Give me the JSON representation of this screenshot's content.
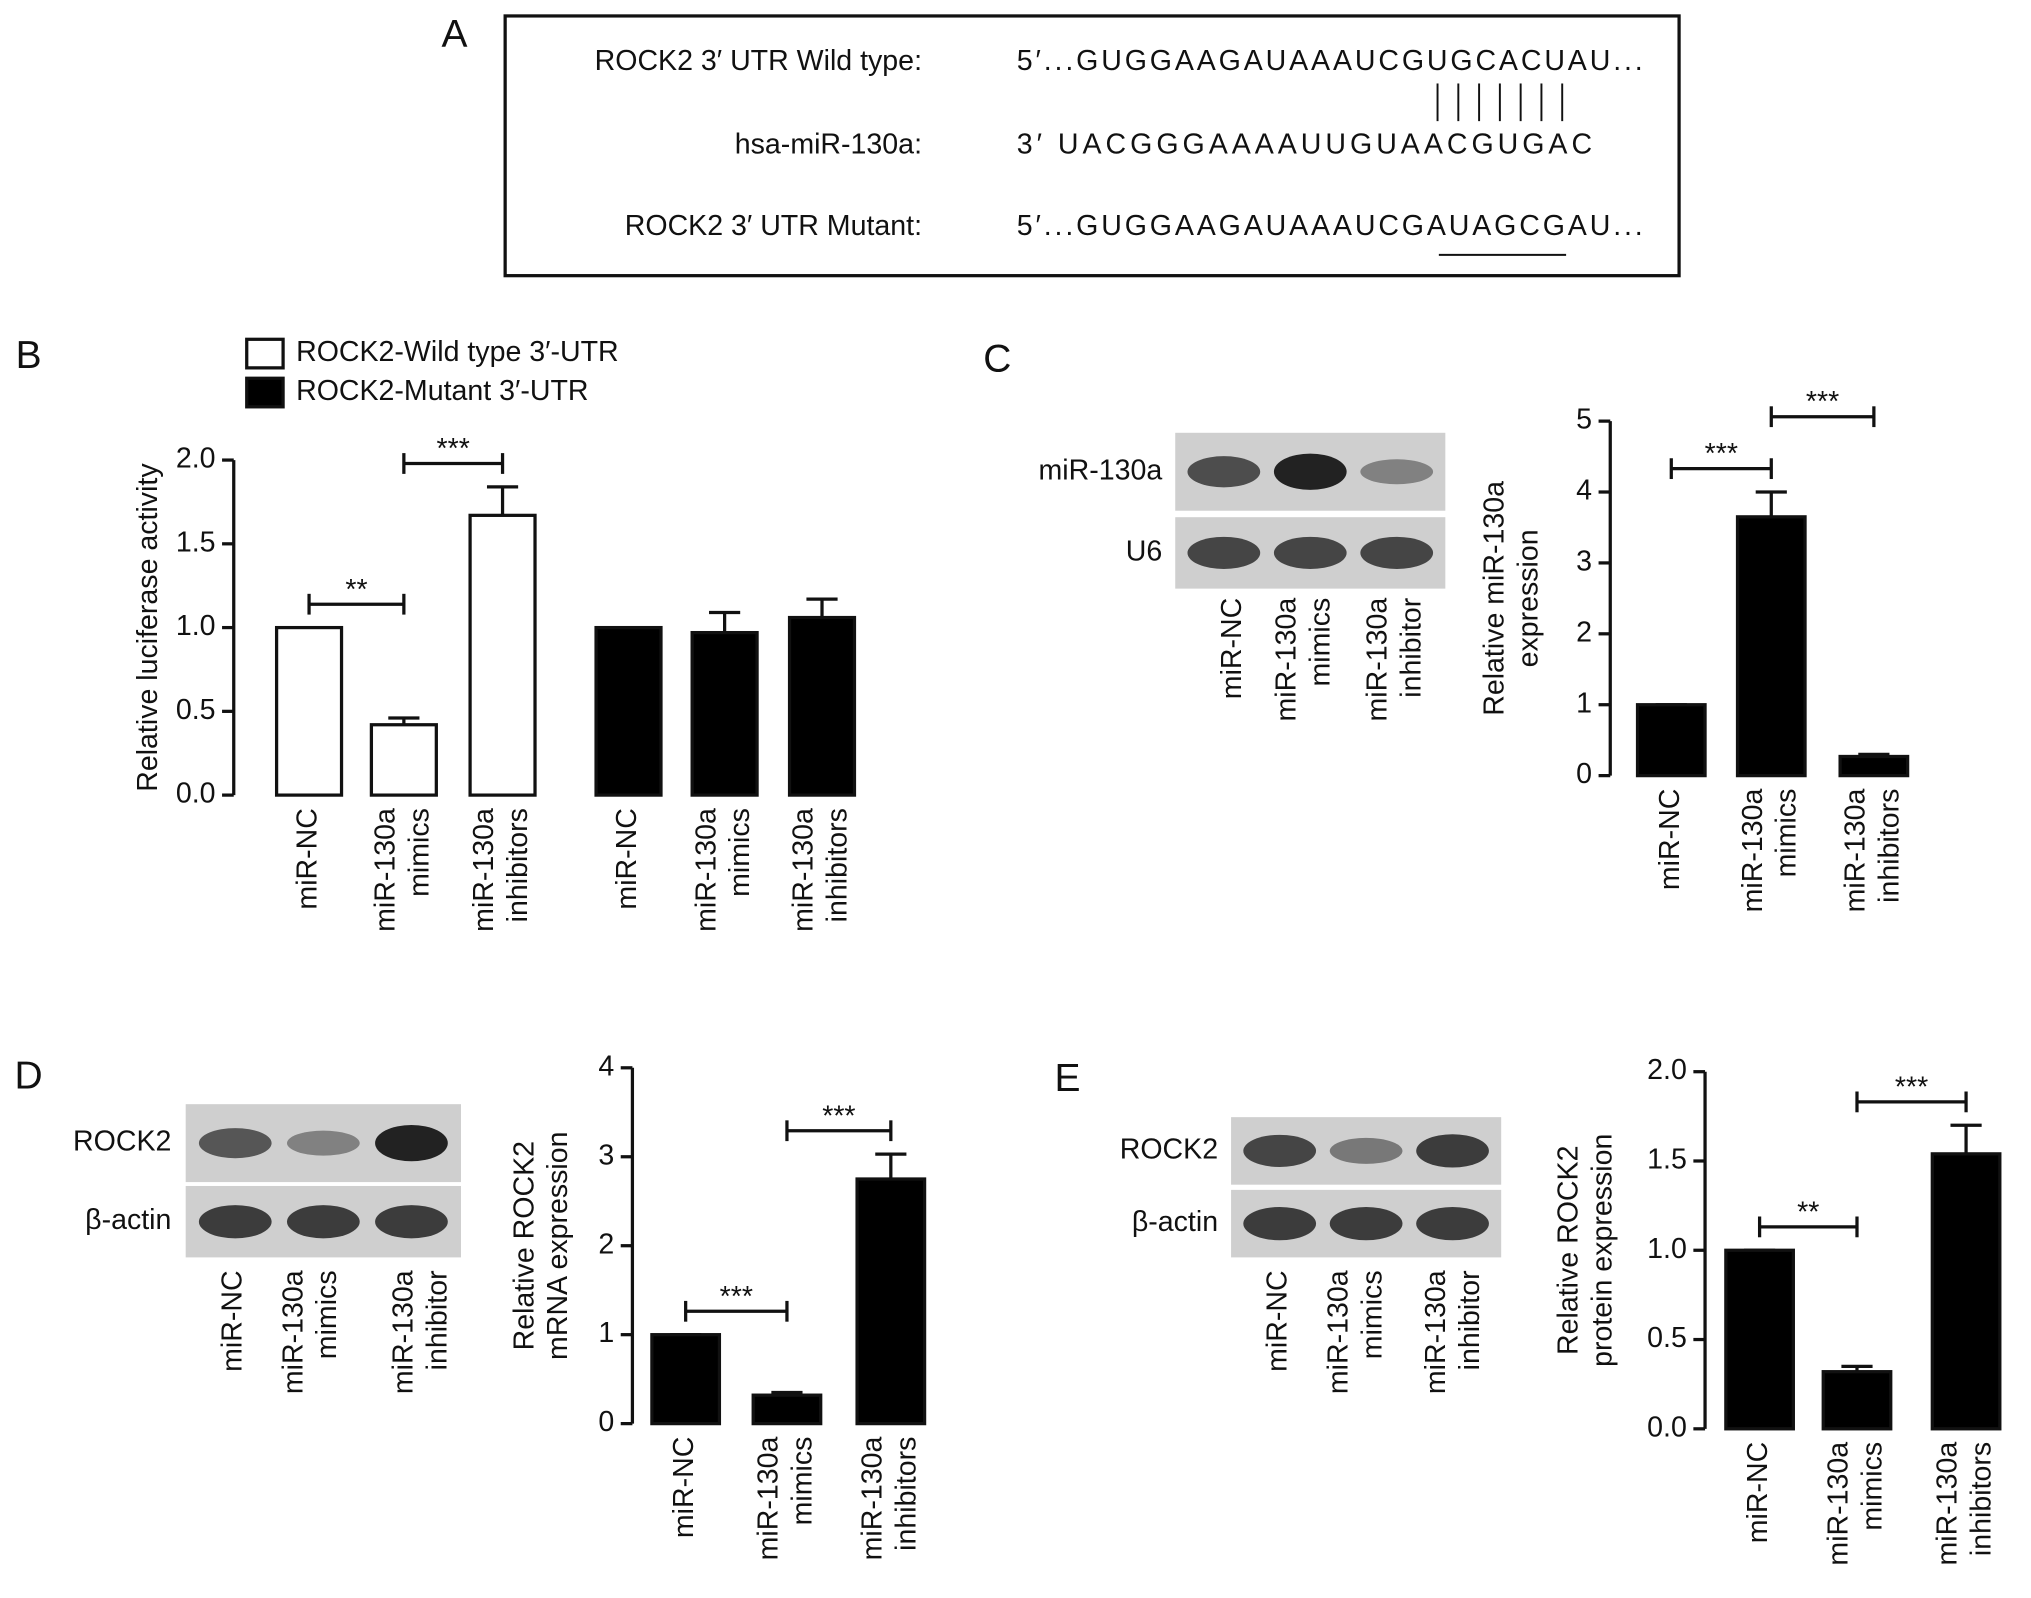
{
  "panel_labels": [
    "A",
    "B",
    "C",
    "D",
    "E"
  ],
  "sequence": {
    "rows": [
      {
        "label": "ROCK2 3′ UTR Wild type:",
        "seq": "5′...GUGGAAGAUAAAUCGUGCACUAU..."
      },
      {
        "label": "hsa-miR-130a:",
        "seq": "3′   UACGGGAAAAUUGUAACGUGAC"
      },
      {
        "label": "ROCK2 3′ UTR Mutant:",
        "seq": "5′...GUGGAAGAUAAAUCGAUAGCGAU..."
      }
    ]
  },
  "blots": [
    {
      "bands": [
        "miR-130a",
        "U6"
      ],
      "lanes": [
        [
          "miR-NC"
        ],
        [
          "miR-130a",
          "mimics"
        ],
        [
          "miR-130a",
          "inhibitor"
        ]
      ]
    },
    {
      "bands": [
        "ROCK2",
        "β-actin"
      ],
      "lanes": [
        [
          "miR-NC"
        ],
        [
          "miR-130a",
          "mimics"
        ],
        [
          "miR-130a",
          "inhibitor"
        ]
      ]
    },
    {
      "bands": [
        "ROCK2",
        "β-actin"
      ],
      "lanes": [
        [
          "miR-NC"
        ],
        [
          "miR-130a",
          "mimics"
        ],
        [
          "miR-130a",
          "inhibitor"
        ]
      ]
    }
  ],
  "chart_data": [
    {
      "type": "bar",
      "y_label": [
        "Relative luciferase activity"
      ],
      "categories": [
        [
          "miR-NC"
        ],
        [
          "miR-130a",
          "mimics"
        ],
        [
          "miR-130a",
          "inhibitors"
        ]
      ],
      "series": [
        {
          "name": "ROCK2-Wild type 3′-UTR",
          "color": "#ffffff",
          "values": [
            1.0,
            0.42,
            1.67
          ],
          "errors": [
            0,
            0.04,
            0.17
          ]
        },
        {
          "name": "ROCK2-Mutant 3′-UTR",
          "color": "#000000",
          "values": [
            1.0,
            0.97,
            1.06
          ],
          "errors": [
            0,
            0.12,
            0.11
          ]
        }
      ],
      "ylim": [
        0,
        2
      ],
      "yticks": [
        {
          "value": 0,
          "label": "0.0"
        },
        {
          "value": 0.5,
          "label": "0.5"
        },
        {
          "value": 1,
          "label": "1.0"
        },
        {
          "value": 1.5,
          "label": "1.5"
        },
        {
          "value": 2,
          "label": "2.0"
        }
      ],
      "significance": [
        {
          "pair": [
            0,
            1
          ],
          "label": "**"
        },
        {
          "pair": [
            1,
            2
          ],
          "label": "***"
        }
      ]
    },
    {
      "type": "bar",
      "y_label": [
        "Relative miR-130a",
        "expression"
      ],
      "categories": [
        [
          "miR-NC"
        ],
        [
          "miR-130a",
          "mimics"
        ],
        [
          "miR-130a",
          "inhibitors"
        ]
      ],
      "series": [
        {
          "color": "#000000",
          "values": [
            1.0,
            3.65,
            0.27
          ],
          "errors": [
            0,
            0.35,
            0.03
          ]
        }
      ],
      "ylim": [
        0,
        5
      ],
      "yticks": [
        0,
        1,
        2,
        3,
        4,
        5
      ],
      "significance": [
        {
          "pair": [
            0,
            1
          ],
          "label": "***"
        },
        {
          "pair": [
            1,
            2
          ],
          "label": "***"
        }
      ]
    },
    {
      "type": "bar",
      "y_label": [
        "Relative ROCK2",
        "mRNA expression"
      ],
      "categories": [
        [
          "miR-NC"
        ],
        [
          "miR-130a",
          "mimics"
        ],
        [
          "miR-130a",
          "inhibitors"
        ]
      ],
      "series": [
        {
          "color": "#000000",
          "values": [
            1.0,
            0.32,
            2.75
          ],
          "errors": [
            0,
            0.03,
            0.28
          ]
        }
      ],
      "ylim": [
        0,
        4
      ],
      "yticks": [
        0,
        1,
        2,
        3,
        4
      ],
      "significance": [
        {
          "pair": [
            0,
            1
          ],
          "label": "***"
        },
        {
          "pair": [
            1,
            2
          ],
          "label": "***"
        }
      ]
    },
    {
      "type": "bar",
      "y_label": [
        "Relative ROCK2",
        "protein expression"
      ],
      "categories": [
        [
          "miR-NC"
        ],
        [
          "miR-130a",
          "mimics"
        ],
        [
          "miR-130a",
          "inhibitors"
        ]
      ],
      "series": [
        {
          "color": "#000000",
          "values": [
            1.0,
            0.32,
            1.54
          ],
          "errors": [
            0,
            0.03,
            0.16
          ]
        }
      ],
      "ylim": [
        0,
        2
      ],
      "yticks": [
        {
          "value": 0,
          "label": "0.0"
        },
        {
          "value": 0.5,
          "label": "0.5"
        },
        {
          "value": 1,
          "label": "1.0"
        },
        {
          "value": 1.5,
          "label": "1.5"
        },
        {
          "value": 2,
          "label": "2.0"
        }
      ],
      "significance": [
        {
          "pair": [
            0,
            1
          ],
          "label": "**"
        },
        {
          "pair": [
            1,
            2
          ],
          "label": "***"
        }
      ]
    }
  ]
}
